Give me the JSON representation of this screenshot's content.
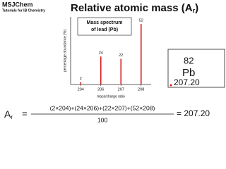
{
  "header": {
    "brand": "MSJChem",
    "tagline": "Tutorials for IB Chemistry",
    "title": [
      "Relative atomic mass (A",
      "r",
      ")"
    ]
  },
  "chart_data": {
    "type": "bar",
    "title": [
      "Mass spectrum",
      "of lead (Pb)"
    ],
    "x_label": "mass/charge ratio",
    "y_label": "percentage abundance (%)",
    "categories": [
      "204",
      "206",
      "207",
      "208"
    ],
    "values": [
      2,
      24,
      22,
      52
    ],
    "color": "#d62020",
    "ylim": [
      0,
      58
    ]
  },
  "element": {
    "atomic_number": "82",
    "symbol": "Pb",
    "mass": "207.20"
  },
  "formula": {
    "lhs": [
      "A",
      "r"
    ],
    "equals": "=",
    "numerator": "(2×204)+(24×206)+(22×207)+(52×208)",
    "denominator": "100",
    "result": "= 207.20"
  }
}
